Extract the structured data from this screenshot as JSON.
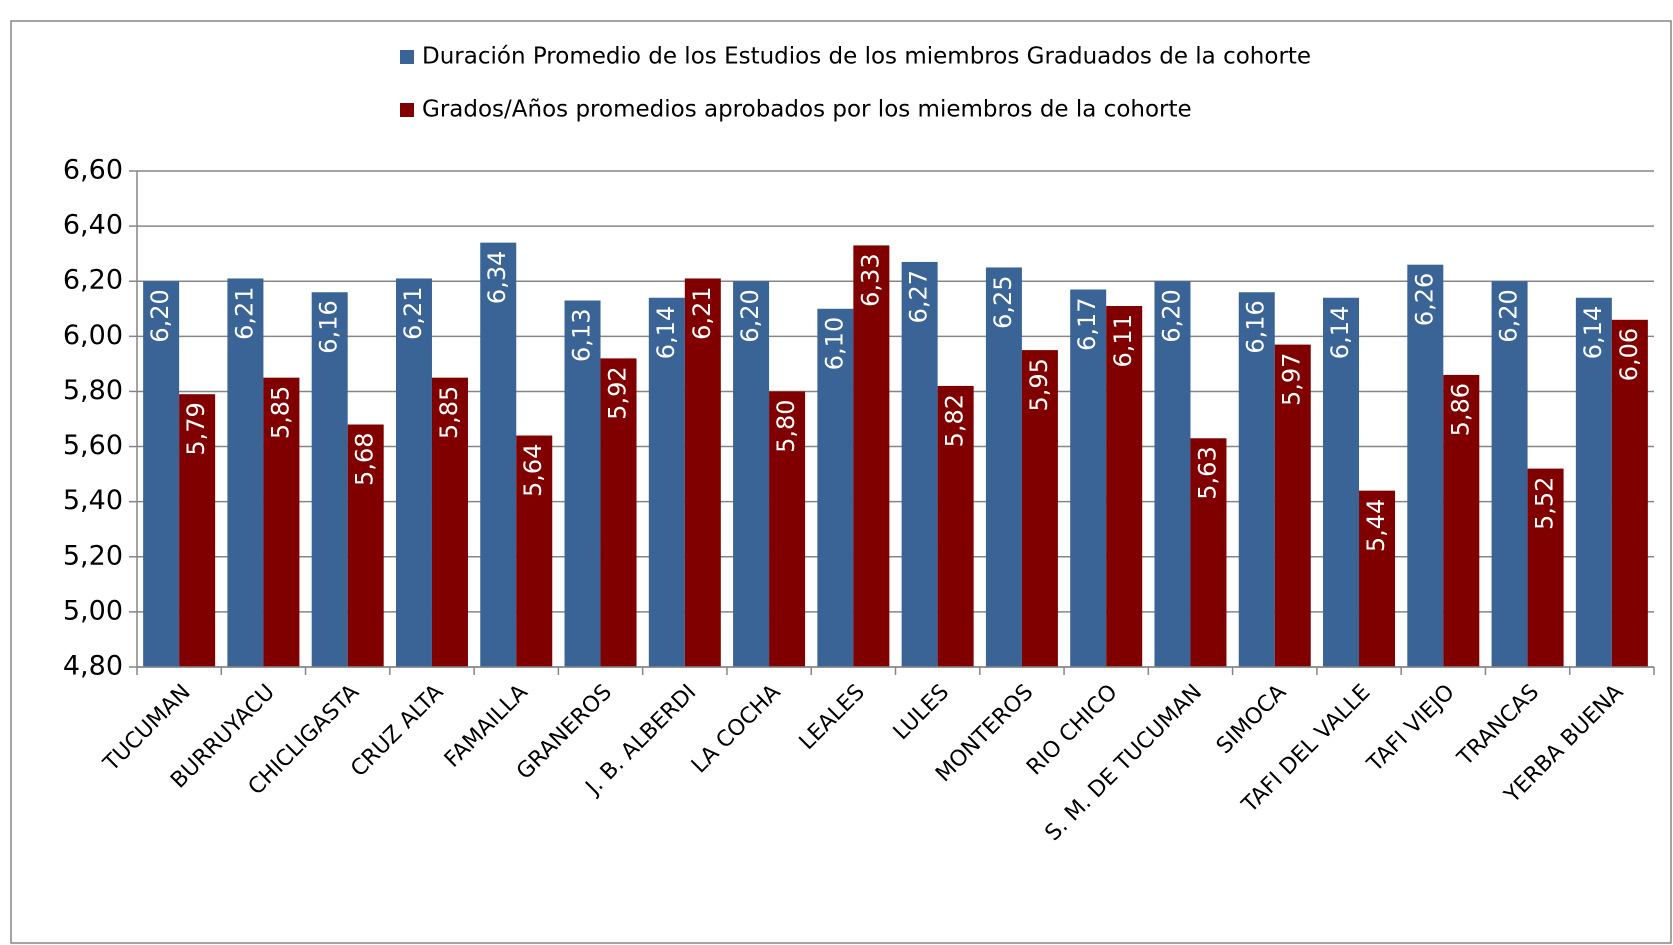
{
  "chart_data": {
    "type": "bar",
    "categories": [
      "TUCUMAN",
      "BURRUYACU",
      "CHICLIGASTA",
      "CRUZ ALTA",
      "FAMAILLA",
      "GRANEROS",
      "J. B. ALBERDI",
      "LA COCHA",
      "LEALES",
      "LULES",
      "MONTEROS",
      "RIO CHICO",
      "S. M. DE TUCUMAN",
      "SIMOCA",
      "TAFI DEL VALLE",
      "TAFI VIEJO",
      "TRANCAS",
      "YERBA BUENA"
    ],
    "series": [
      {
        "name": "Duración Promedio de los Estudios de los miembros Graduados  de la cohorte",
        "color": "#3a6396",
        "values": [
          6.2,
          6.21,
          6.16,
          6.21,
          6.34,
          6.13,
          6.14,
          6.2,
          6.1,
          6.27,
          6.25,
          6.17,
          6.2,
          6.16,
          6.14,
          6.26,
          6.2,
          6.14
        ],
        "value_labels": [
          "6,20",
          "6,21",
          "6,16",
          "6,21",
          "6,34",
          "6,13",
          "6,14",
          "6,20",
          "6,10",
          "6,27",
          "6,25",
          "6,17",
          "6,20",
          "6,16",
          "6,14",
          "6,26",
          "6,20",
          "6,14"
        ]
      },
      {
        "name": "Grados/Años promedios aprobados por los miembros de la cohorte",
        "color": "#800000",
        "values": [
          5.79,
          5.85,
          5.68,
          5.85,
          5.64,
          5.92,
          6.21,
          5.8,
          6.33,
          5.82,
          5.95,
          6.11,
          5.63,
          5.97,
          5.44,
          5.86,
          5.52,
          6.06
        ],
        "value_labels": [
          "5,79",
          "5,85",
          "5,68",
          "5,85",
          "5,64",
          "5,92",
          "6,21",
          "5,80",
          "6,33",
          "5,82",
          "5,95",
          "6,11",
          "5,63",
          "5,97",
          "5,44",
          "5,86",
          "5,52",
          "6,06"
        ]
      }
    ],
    "ylim": [
      4.8,
      6.6
    ],
    "yticks": [
      {
        "value": 4.8,
        "label": "4,80"
      },
      {
        "value": 5.0,
        "label": "5,00"
      },
      {
        "value": 5.2,
        "label": "5,20"
      },
      {
        "value": 5.4,
        "label": "5,40"
      },
      {
        "value": 5.6,
        "label": "5,60"
      },
      {
        "value": 5.8,
        "label": "5,80"
      },
      {
        "value": 6.0,
        "label": "6,00"
      },
      {
        "value": 6.2,
        "label": "6,20"
      },
      {
        "value": 6.4,
        "label": "6,40"
      },
      {
        "value": 6.6,
        "label": "6,60"
      }
    ],
    "grid": true,
    "legend": "top"
  }
}
